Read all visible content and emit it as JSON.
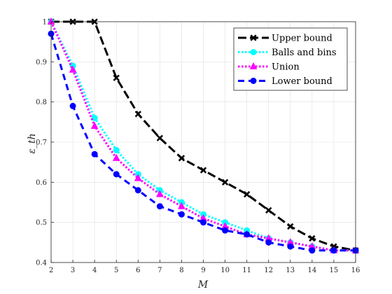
{
  "chart_data": {
    "type": "line",
    "xlabel": "M",
    "ylabel": "ε_th",
    "xlim": [
      2,
      16
    ],
    "ylim": [
      0.4,
      1.0
    ],
    "x_ticks": [
      "2",
      "3",
      "4",
      "5",
      "6",
      "7",
      "8",
      "9",
      "10",
      "11",
      "12",
      "13",
      "14",
      "15",
      "16"
    ],
    "y_ticks": [
      "0.4",
      "0.5",
      "0.6",
      "0.7",
      "0.8",
      "0.9",
      "1"
    ],
    "grid": true,
    "legend_position": "top-right",
    "x": [
      2,
      3,
      4,
      5,
      6,
      7,
      8,
      9,
      10,
      11,
      12,
      13,
      14,
      15,
      16
    ],
    "series": [
      {
        "name": "Upper bound",
        "color": "#000000",
        "marker": "x",
        "dash": "long-dash",
        "values": [
          1.0,
          1.0,
          1.0,
          0.86,
          0.77,
          0.71,
          0.66,
          0.63,
          0.6,
          0.57,
          0.53,
          0.49,
          0.46,
          0.44,
          0.43
        ]
      },
      {
        "name": "Balls and bins",
        "color": "#00ffff",
        "marker": "circle",
        "dash": "dotted",
        "values": [
          1.0,
          0.89,
          0.76,
          0.68,
          0.62,
          0.58,
          0.55,
          0.52,
          0.5,
          0.48,
          0.46,
          0.45,
          0.44,
          0.43,
          0.43
        ]
      },
      {
        "name": "Union",
        "color": "#ff00ff",
        "marker": "triangle",
        "dash": "dotted",
        "values": [
          1.0,
          0.88,
          0.74,
          0.66,
          0.61,
          0.57,
          0.54,
          0.51,
          0.49,
          0.47,
          0.46,
          0.45,
          0.44,
          0.43,
          0.43
        ]
      },
      {
        "name": "Lower bound",
        "color": "#0000ff",
        "marker": "circle",
        "dash": "dashed",
        "values": [
          0.97,
          0.79,
          0.67,
          0.62,
          0.58,
          0.54,
          0.52,
          0.5,
          0.48,
          0.47,
          0.45,
          0.44,
          0.43,
          0.43,
          0.43
        ]
      }
    ]
  }
}
